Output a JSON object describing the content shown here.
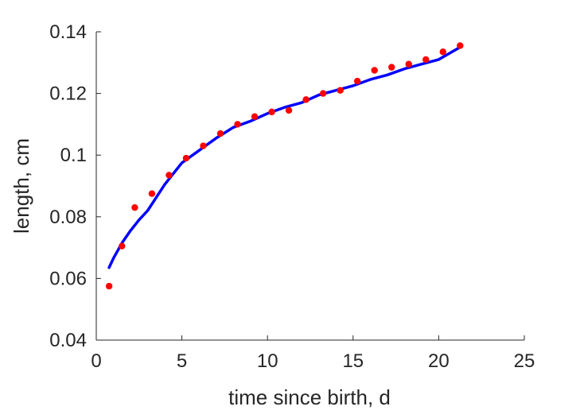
{
  "chart_data": {
    "type": "scatter",
    "xlabel": "time since birth, d",
    "ylabel": "length, cm",
    "xlim": [
      0,
      25
    ],
    "ylim": [
      0.04,
      0.14
    ],
    "xticks": [
      0,
      5,
      10,
      15,
      20,
      25
    ],
    "xtick_labels": [
      "0",
      "5",
      "10",
      "15",
      "20",
      "25"
    ],
    "yticks": [
      0.04,
      0.06,
      0.08,
      0.1,
      0.12,
      0.14
    ],
    "ytick_labels": [
      "0.04",
      "0.06",
      "0.08",
      "0.1",
      "0.12",
      "0.14"
    ],
    "grid": false,
    "series": [
      {
        "kind": "markers",
        "color": "#ff0000",
        "x": [
          0.75,
          1.5,
          2.25,
          3.25,
          4.25,
          5.25,
          6.25,
          7.25,
          8.25,
          9.25,
          10.25,
          11.25,
          12.25,
          13.25,
          14.25,
          15.25,
          16.25,
          17.25,
          18.25,
          19.25,
          20.25,
          21.25
        ],
        "y": [
          0.0575,
          0.0705,
          0.083,
          0.0875,
          0.0935,
          0.099,
          0.103,
          0.107,
          0.11,
          0.1125,
          0.114,
          0.1145,
          0.118,
          0.12,
          0.121,
          0.124,
          0.1275,
          0.1285,
          0.1295,
          0.131,
          0.1335,
          0.1355
        ]
      },
      {
        "kind": "line",
        "color": "#0000ff",
        "x": [
          0.75,
          1.0,
          1.5,
          2.0,
          2.5,
          3.0,
          4.0,
          5.0,
          6.0,
          7.0,
          8.0,
          9.0,
          10.0,
          11.0,
          12.0,
          13.0,
          14.0,
          15.0,
          16.0,
          17.0,
          18.0,
          19.0,
          20.0,
          21.25
        ],
        "y": [
          0.0635,
          0.0665,
          0.0715,
          0.0755,
          0.079,
          0.082,
          0.0905,
          0.0975,
          0.1015,
          0.1055,
          0.109,
          0.111,
          0.1135,
          0.1155,
          0.117,
          0.1195,
          0.121,
          0.1225,
          0.1245,
          0.126,
          0.128,
          0.1295,
          0.131,
          0.135
        ]
      }
    ]
  }
}
